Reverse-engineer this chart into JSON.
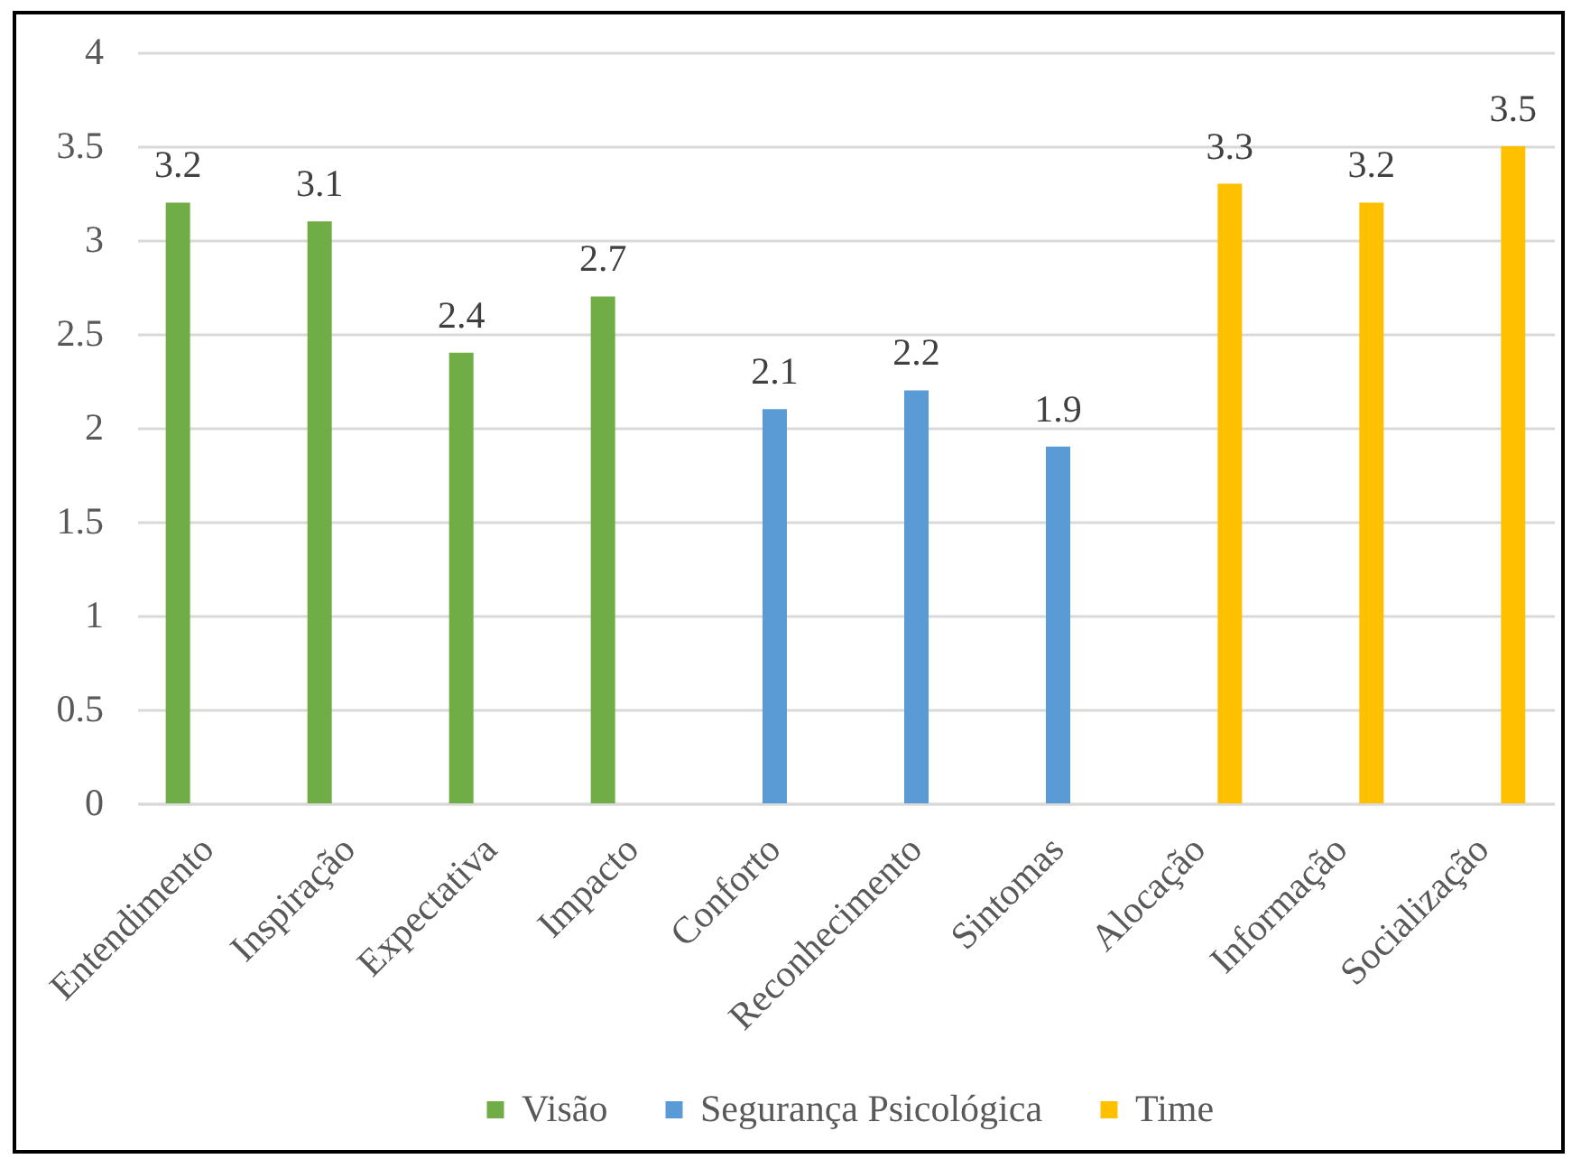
{
  "chart_data": {
    "type": "bar",
    "categories": [
      "Entendimento",
      "Inspiração",
      "Expectativa",
      "Impacto",
      "Conforto",
      "Reconhecimento",
      "Sintomas",
      "Alocação",
      "Informação",
      "Socialização"
    ],
    "series": [
      {
        "name": "Visão",
        "color": "#70ad47",
        "values": [
          3.2,
          3.1,
          2.4,
          2.7,
          null,
          null,
          null,
          null,
          null,
          null
        ]
      },
      {
        "name": "Segurança Psicológica",
        "color": "#5b9bd5",
        "values": [
          null,
          null,
          null,
          null,
          2.1,
          2.2,
          1.9,
          null,
          null,
          null
        ]
      },
      {
        "name": "Time",
        "color": "#ffc000",
        "values": [
          null,
          null,
          null,
          null,
          null,
          null,
          null,
          3.3,
          3.2,
          3.5
        ]
      }
    ],
    "ylim": [
      0,
      4
    ],
    "yticks": [
      0,
      0.5,
      1,
      1.5,
      2,
      2.5,
      3,
      3.5,
      4
    ],
    "grid": "y",
    "legend": "bottom",
    "data_labels": true
  }
}
